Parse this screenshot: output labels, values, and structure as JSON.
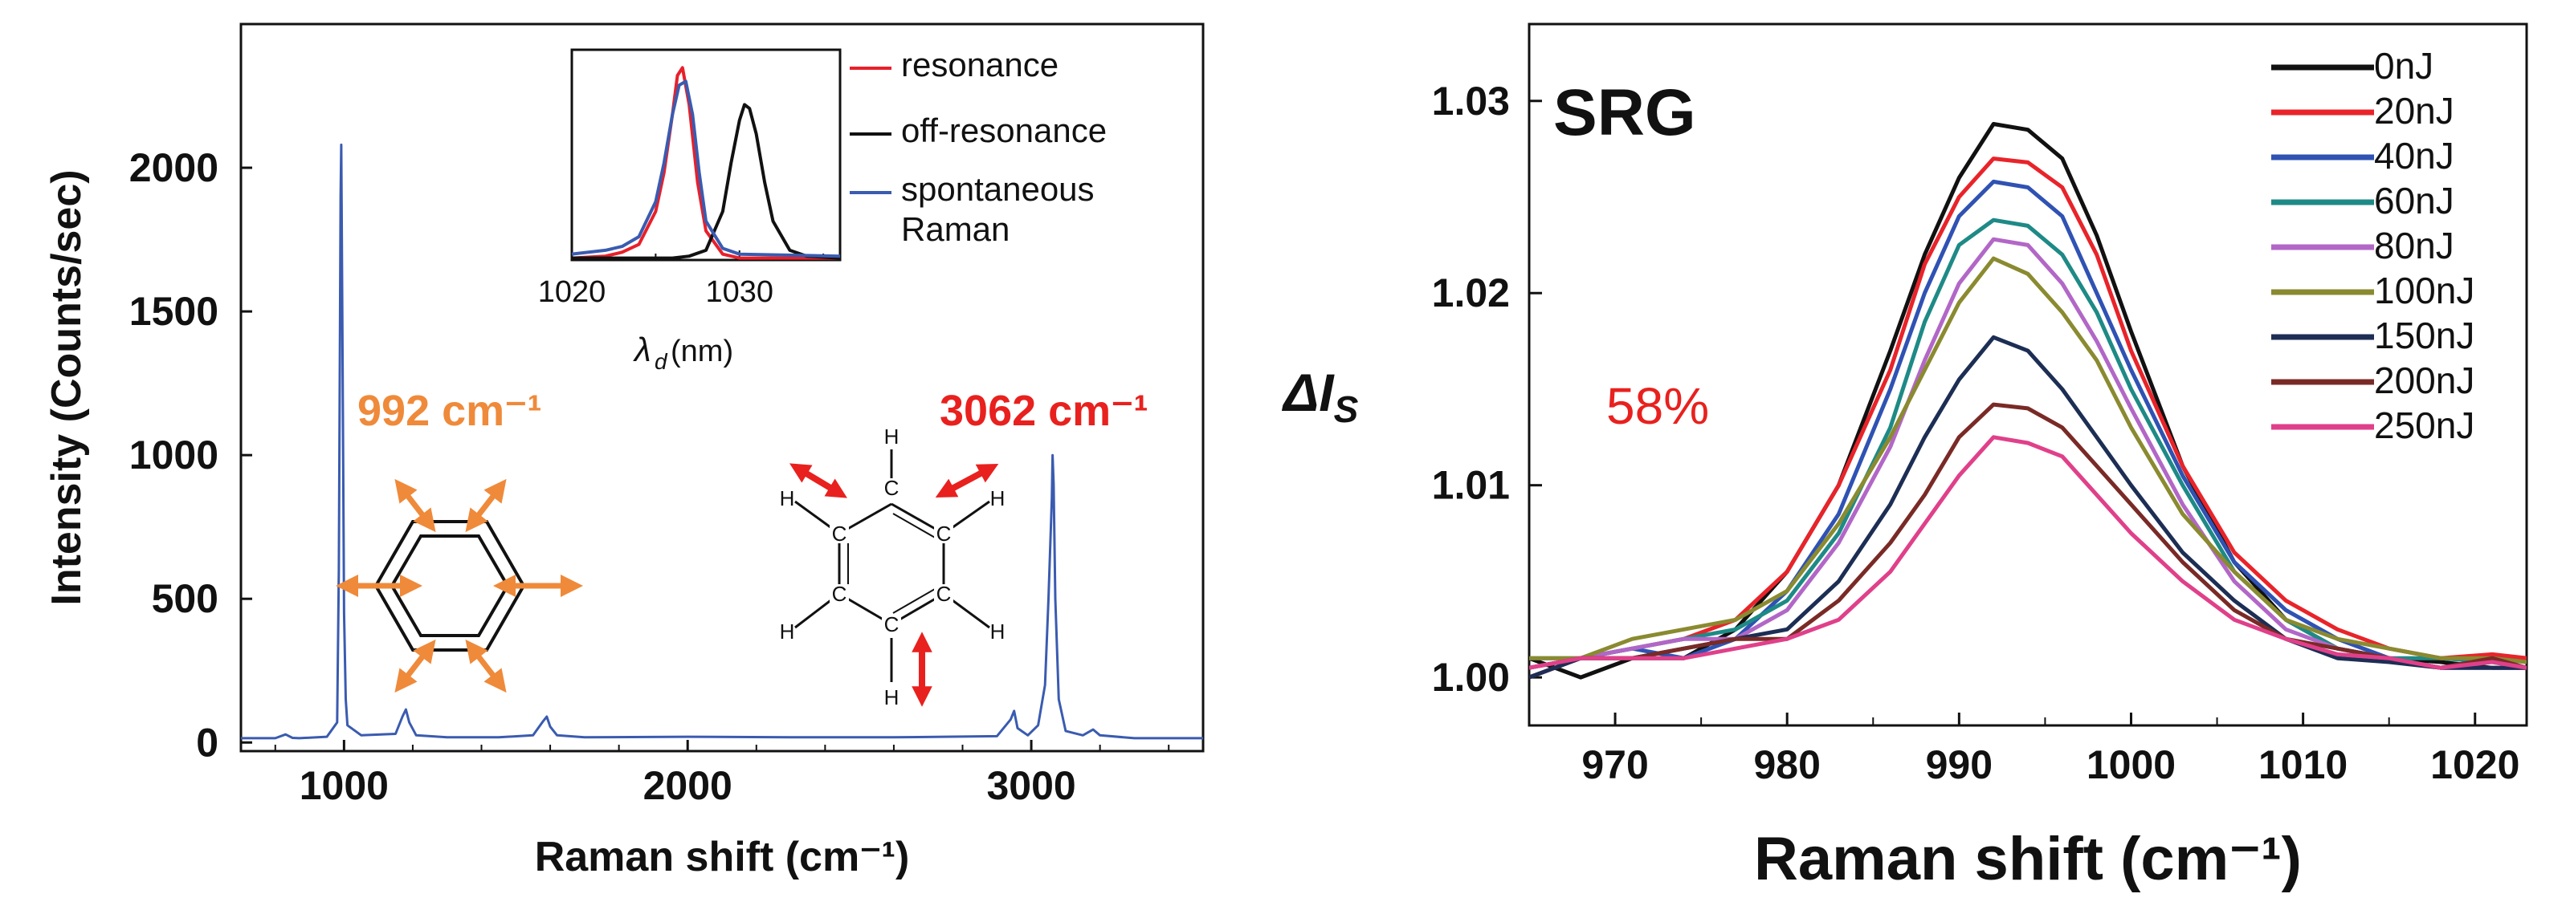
{
  "chart_data": [
    {
      "type": "line",
      "xlabel": "Raman shift (cm⁻¹)",
      "ylabel": "Intensity (Counts/sec)",
      "xlim": [
        700,
        3500
      ],
      "ylim": [
        -30,
        2500
      ],
      "xticks": [
        "1000",
        "2000",
        "3000"
      ],
      "yticks": [
        "0",
        "500",
        "1000",
        "1500",
        "2000"
      ],
      "color": "#3a5bb0",
      "series": [
        {
          "x": [
            700,
            800,
            830,
            850,
            870,
            950,
            980,
            985,
            990,
            992,
            995,
            1000,
            1005,
            1010,
            1050,
            1150,
            1170,
            1180,
            1190,
            1210,
            1300,
            1450,
            1550,
            1580,
            1590,
            1600,
            1620,
            1700,
            2000,
            2300,
            2600,
            2900,
            2940,
            2950,
            2960,
            2990,
            3020,
            3040,
            3050,
            3060,
            3062,
            3065,
            3070,
            3080,
            3100,
            3150,
            3180,
            3200,
            3300,
            3500
          ],
          "y": [
            15,
            15,
            28,
            16,
            15,
            20,
            70,
            600,
            1900,
            2080,
            1500,
            450,
            150,
            60,
            25,
            30,
            90,
            115,
            70,
            25,
            18,
            18,
            25,
            75,
            90,
            55,
            25,
            18,
            20,
            18,
            18,
            22,
            80,
            110,
            50,
            25,
            60,
            200,
            500,
            850,
            1000,
            900,
            500,
            150,
            40,
            25,
            45,
            25,
            15,
            15
          ]
        }
      ],
      "annotations": [
        {
          "text": "992 cm⁻¹",
          "color": "#ef8a3a"
        },
        {
          "text": "3062 cm⁻¹",
          "color": "#e8211e"
        }
      ],
      "molecule_atoms": [
        "C",
        "C",
        "C",
        "C",
        "C",
        "C",
        "H",
        "H",
        "H",
        "H",
        "H",
        "H"
      ]
    },
    {
      "type": "line",
      "inset": true,
      "xlabel": "λd(nm)",
      "xlim": [
        1020,
        1036
      ],
      "ylim": [
        0,
        1
      ],
      "xticks": [
        "1020",
        "1030"
      ],
      "legend_position": "right",
      "series": [
        {
          "name": "resonance",
          "color": "#e8202a",
          "x": [
            1020,
            1022,
            1023,
            1024,
            1025,
            1025.5,
            1026,
            1026.3,
            1026.6,
            1027,
            1027.5,
            1028,
            1029,
            1030,
            1036
          ],
          "y": [
            0.01,
            0.02,
            0.04,
            0.08,
            0.25,
            0.45,
            0.75,
            0.95,
            0.99,
            0.8,
            0.4,
            0.15,
            0.03,
            0.01,
            0.01
          ]
        },
        {
          "name": "off-resonance",
          "color": "#111111",
          "x": [
            1020,
            1026,
            1027,
            1028,
            1029,
            1029.5,
            1030,
            1030.3,
            1030.6,
            1031,
            1031.5,
            1032,
            1033,
            1034,
            1036
          ],
          "y": [
            0.01,
            0.01,
            0.02,
            0.05,
            0.25,
            0.5,
            0.72,
            0.8,
            0.78,
            0.65,
            0.4,
            0.2,
            0.05,
            0.02,
            0.01
          ]
        },
        {
          "name": "spontaneous Raman",
          "color": "#3a5bb0",
          "x": [
            1020,
            1022,
            1023,
            1024,
            1025,
            1025.5,
            1026,
            1026.4,
            1026.8,
            1027.2,
            1027.6,
            1028,
            1029,
            1030,
            1036
          ],
          "y": [
            0.03,
            0.05,
            0.07,
            0.12,
            0.3,
            0.5,
            0.75,
            0.9,
            0.92,
            0.75,
            0.45,
            0.2,
            0.06,
            0.03,
            0.02
          ]
        }
      ]
    },
    {
      "type": "line",
      "title": "SRG",
      "xlabel": "Raman shift (cm⁻¹)",
      "ylabel": "ΔI",
      "ylabel_subscript": "S",
      "xlim": [
        965,
        1023
      ],
      "ylim": [
        0.9975,
        1.034
      ],
      "xticks": [
        "970",
        "980",
        "990",
        "1000",
        "1010",
        "1020"
      ],
      "yticks": [
        "1.00",
        "1.01",
        "1.02",
        "1.03"
      ],
      "legend_position": "top-right",
      "annotation": {
        "text": "58%",
        "color": "#e8211e"
      },
      "x": [
        965,
        968,
        971,
        974,
        977,
        980,
        983,
        986,
        988,
        990,
        992,
        994,
        996,
        998,
        1000,
        1003,
        1006,
        1009,
        1012,
        1015,
        1018,
        1021,
        1023
      ],
      "series": [
        {
          "name": "0nJ",
          "color": "#111111",
          "y": [
            1.001,
            1.0,
            1.001,
            1.001,
            1.0025,
            1.0055,
            1.01,
            1.017,
            1.022,
            1.026,
            1.0288,
            1.0285,
            1.027,
            1.023,
            1.018,
            1.011,
            1.006,
            1.003,
            1.0015,
            1.001,
            1.0008,
            1.0005,
            1.0005
          ]
        },
        {
          "name": "20nJ",
          "color": "#e8242a",
          "y": [
            1.0,
            1.001,
            1.0015,
            1.002,
            1.003,
            1.0055,
            1.01,
            1.016,
            1.0215,
            1.025,
            1.027,
            1.0268,
            1.0255,
            1.022,
            1.017,
            1.011,
            1.0065,
            1.004,
            1.0025,
            1.0015,
            1.001,
            1.0012,
            1.001
          ]
        },
        {
          "name": "40nJ",
          "color": "#2f52b3",
          "y": [
            1.0005,
            1.001,
            1.0015,
            1.001,
            1.002,
            1.0045,
            1.0085,
            1.015,
            1.02,
            1.024,
            1.0258,
            1.0255,
            1.024,
            1.02,
            1.016,
            1.0105,
            1.006,
            1.0035,
            1.002,
            1.001,
            1.0005,
            1.001,
            1.0008
          ]
        },
        {
          "name": "60nJ",
          "color": "#1e8a86",
          "y": [
            1.001,
            1.001,
            1.0015,
            1.002,
            1.0025,
            1.004,
            1.0075,
            1.013,
            1.0185,
            1.0225,
            1.0238,
            1.0235,
            1.022,
            1.019,
            1.015,
            1.01,
            1.0055,
            1.003,
            1.0015,
            1.001,
            1.001,
            1.0008,
            1.0005
          ]
        },
        {
          "name": "80nJ",
          "color": "#b267c7",
          "y": [
            1.0005,
            1.001,
            1.0015,
            1.002,
            1.002,
            1.0035,
            1.007,
            1.012,
            1.0165,
            1.0205,
            1.0228,
            1.0225,
            1.0205,
            1.0175,
            1.014,
            1.009,
            1.005,
            1.0025,
            1.0015,
            1.001,
            1.0005,
            1.0005,
            1.0005
          ]
        },
        {
          "name": "100nJ",
          "color": "#8a8a30",
          "y": [
            1.001,
            1.001,
            1.002,
            1.0025,
            1.003,
            1.0045,
            1.008,
            1.0125,
            1.016,
            1.0195,
            1.0218,
            1.021,
            1.019,
            1.0165,
            1.013,
            1.0085,
            1.0055,
            1.003,
            1.002,
            1.0015,
            1.001,
            1.001,
            1.0008
          ]
        },
        {
          "name": "150nJ",
          "color": "#1d2e55",
          "y": [
            1.0,
            1.001,
            1.001,
            1.0015,
            1.002,
            1.0025,
            1.005,
            1.009,
            1.0125,
            1.0155,
            1.0177,
            1.017,
            1.015,
            1.0125,
            1.01,
            1.0065,
            1.004,
            1.002,
            1.001,
            1.0008,
            1.0005,
            1.0005,
            1.0005
          ]
        },
        {
          "name": "200nJ",
          "color": "#7a2a26",
          "y": [
            1.0005,
            1.001,
            1.001,
            1.0015,
            1.002,
            1.002,
            1.004,
            1.007,
            1.0095,
            1.0125,
            1.0142,
            1.014,
            1.013,
            1.011,
            1.009,
            1.006,
            1.0035,
            1.002,
            1.0015,
            1.001,
            1.0005,
            1.001,
            1.0005
          ]
        },
        {
          "name": "250nJ",
          "color": "#e0408a",
          "y": [
            1.0005,
            1.001,
            1.001,
            1.001,
            1.0015,
            1.002,
            1.003,
            1.0055,
            1.008,
            1.0105,
            1.0125,
            1.0122,
            1.0115,
            1.0095,
            1.0075,
            1.005,
            1.003,
            1.002,
            1.0012,
            1.001,
            1.0005,
            1.0008,
            1.0005
          ]
        }
      ]
    }
  ]
}
